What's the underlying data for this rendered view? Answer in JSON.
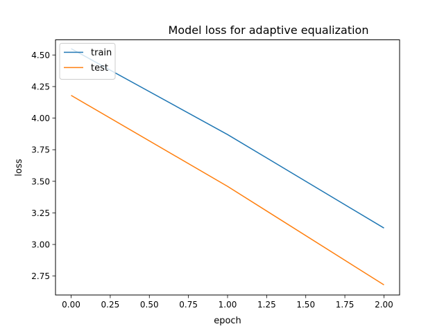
{
  "chart_data": {
    "type": "line",
    "title": "Model loss for adaptive equalization",
    "xlabel": "epoch",
    "ylabel": "loss",
    "xlim": [
      -0.1,
      2.1
    ],
    "ylim": [
      2.6,
      4.62
    ],
    "xticks": [
      "0.00",
      "0.25",
      "0.50",
      "0.75",
      "1.00",
      "1.25",
      "1.50",
      "1.75",
      "2.00"
    ],
    "yticks": [
      "2.75",
      "3.00",
      "3.25",
      "3.50",
      "3.75",
      "4.00",
      "4.25",
      "4.50"
    ],
    "grid": false,
    "legend_position": "upper left",
    "x": [
      0,
      1,
      2
    ],
    "series": [
      {
        "name": "train",
        "color": "#1f77b4",
        "values": [
          4.55,
          3.87,
          3.13
        ]
      },
      {
        "name": "test",
        "color": "#ff7f0e",
        "values": [
          4.18,
          3.46,
          2.68
        ]
      }
    ]
  }
}
